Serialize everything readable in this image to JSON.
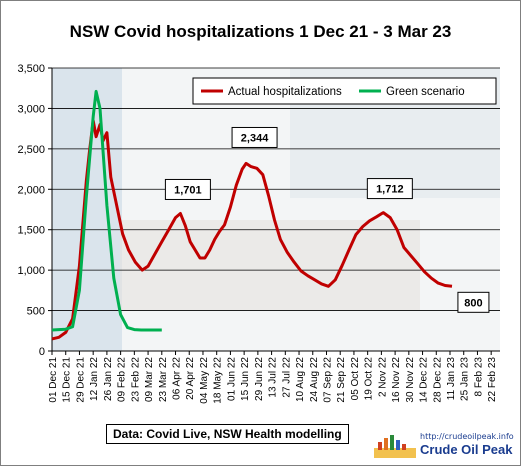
{
  "chart_data": {
    "type": "line",
    "title": "NSW Covid hospitalizations 1 Dec 21 - 3 Mar 23",
    "xlabel": "",
    "ylabel": "",
    "ylim": [
      0,
      3500
    ],
    "y_ticks": [
      0,
      500,
      1000,
      1500,
      2000,
      2500,
      3000,
      3500
    ],
    "y_tick_labels": [
      "0",
      "500",
      "1,000",
      "1,500",
      "2,000",
      "2,500",
      "3,000",
      "3,500"
    ],
    "x_tick_labels": [
      "01 Dec 21",
      "15 Dec 21",
      "29 Dec 21",
      "12 Jan 22",
      "26 Jan 22",
      "09 Feb 22",
      "23 Feb 22",
      "09 Mar 22",
      "23 Mar 22",
      "06 Apr 22",
      "20 Apr 22",
      "04 May 22",
      "18 May 22",
      "01 Jun 22",
      "15 Jun 22",
      "29 Jun 22",
      "13 Jul 22",
      "27 Jul 22",
      "10 Aug 22",
      "24 Aug 22",
      "07 Sep 22",
      "21 Sep 22",
      "05 Oct 22",
      "19 Oct 22",
      "2 Nov 22",
      "16 Nov 22",
      "30 Nov 22",
      "14 Dec 22",
      "28 Dec 22",
      "11 Jan 23",
      "25 Jan 23",
      "8 Feb 23",
      "22 Feb 23"
    ],
    "x_range_days": [
      0,
      457
    ],
    "grid": "horizontal",
    "legend": "top-right",
    "series": [
      {
        "name": "Actual hospitalizations",
        "color": "#c00000",
        "points": [
          [
            0,
            150
          ],
          [
            7,
            170
          ],
          [
            14,
            230
          ],
          [
            21,
            400
          ],
          [
            28,
            1050
          ],
          [
            35,
            2100
          ],
          [
            38,
            2450
          ],
          [
            42,
            2850
          ],
          [
            45,
            2650
          ],
          [
            49,
            2800
          ],
          [
            52,
            2600
          ],
          [
            56,
            2700
          ],
          [
            60,
            2150
          ],
          [
            66,
            1800
          ],
          [
            72,
            1450
          ],
          [
            78,
            1250
          ],
          [
            85,
            1100
          ],
          [
            92,
            1000
          ],
          [
            98,
            1050
          ],
          [
            105,
            1200
          ],
          [
            112,
            1350
          ],
          [
            119,
            1500
          ],
          [
            126,
            1650
          ],
          [
            131,
            1700
          ],
          [
            136,
            1550
          ],
          [
            141,
            1350
          ],
          [
            146,
            1250
          ],
          [
            151,
            1150
          ],
          [
            156,
            1150
          ],
          [
            161,
            1250
          ],
          [
            166,
            1380
          ],
          [
            171,
            1480
          ],
          [
            176,
            1560
          ],
          [
            182,
            1780
          ],
          [
            188,
            2050
          ],
          [
            194,
            2250
          ],
          [
            198,
            2320
          ],
          [
            203,
            2280
          ],
          [
            209,
            2260
          ],
          [
            215,
            2180
          ],
          [
            221,
            1920
          ],
          [
            227,
            1620
          ],
          [
            233,
            1380
          ],
          [
            240,
            1220
          ],
          [
            247,
            1100
          ],
          [
            254,
            990
          ],
          [
            261,
            930
          ],
          [
            268,
            880
          ],
          [
            275,
            830
          ],
          [
            282,
            800
          ],
          [
            289,
            880
          ],
          [
            296,
            1060
          ],
          [
            303,
            1250
          ],
          [
            310,
            1440
          ],
          [
            317,
            1540
          ],
          [
            324,
            1610
          ],
          [
            331,
            1660
          ],
          [
            338,
            1712
          ],
          [
            345,
            1650
          ],
          [
            352,
            1500
          ],
          [
            359,
            1280
          ],
          [
            366,
            1180
          ],
          [
            373,
            1080
          ],
          [
            380,
            980
          ],
          [
            387,
            900
          ],
          [
            394,
            840
          ],
          [
            401,
            810
          ],
          [
            408,
            800
          ]
        ]
      },
      {
        "name": "Green scenario",
        "color": "#00b050",
        "points": [
          [
            0,
            260
          ],
          [
            14,
            270
          ],
          [
            21,
            300
          ],
          [
            28,
            750
          ],
          [
            35,
            1900
          ],
          [
            42,
            2900
          ],
          [
            45,
            3210
          ],
          [
            49,
            3000
          ],
          [
            56,
            1800
          ],
          [
            63,
            900
          ],
          [
            70,
            450
          ],
          [
            77,
            290
          ],
          [
            84,
            265
          ],
          [
            91,
            260
          ],
          [
            100,
            260
          ],
          [
            112,
            260
          ]
        ]
      }
    ],
    "annotations": [
      {
        "text": "1,701",
        "x": 132,
        "y": 1701
      },
      {
        "text": "2,344",
        "x": 200,
        "y": 2344
      },
      {
        "text": "1,712",
        "x": 338,
        "y": 1712
      },
      {
        "text": "800",
        "x": 410,
        "y": 800
      }
    ],
    "source_note": "Data: Covid Live, NSW Health modelling"
  },
  "brand": {
    "url": "http://crudeoilpeak.info",
    "name": "Crude Oil Peak"
  }
}
